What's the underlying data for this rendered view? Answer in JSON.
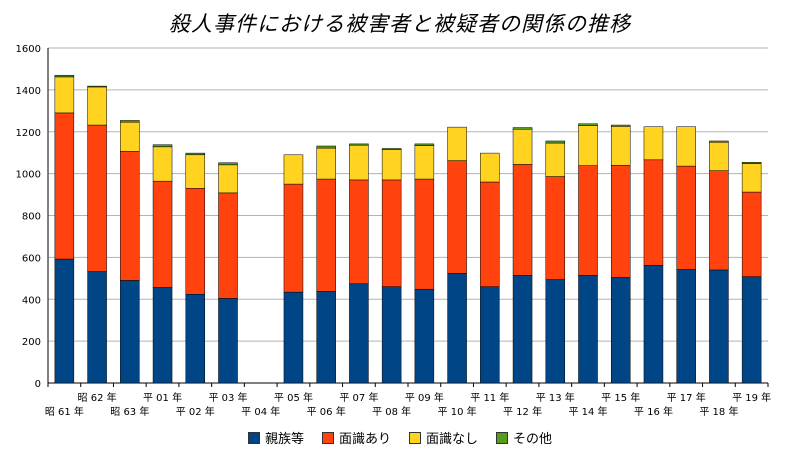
{
  "chart_data": {
    "type": "bar",
    "stacked": true,
    "title": "殺人事件における被害者と被疑者の関係の推移",
    "xlabel": "",
    "ylabel": "",
    "ylim": [
      0,
      1600
    ],
    "yticks": [
      0,
      200,
      400,
      600,
      800,
      1000,
      1200,
      1400,
      1600
    ],
    "grid": true,
    "legend_position": "bottom",
    "categories": [
      "昭 61 年",
      "昭 62 年",
      "昭 63 年",
      "平 01 年",
      "平 02 年",
      "平 03 年",
      "平 04 年",
      "平 05 年",
      "平 06 年",
      "平 07 年",
      "平 08 年",
      "平 09 年",
      "平 10 年",
      "平 11 年",
      "平 12 年",
      "平 13 年",
      "平 14 年",
      "平 15 年",
      "平 16 年",
      "平 17 年",
      "平 18 年",
      "平 19 年"
    ],
    "series": [
      {
        "name": "親族等",
        "color": "#004586",
        "values": [
          592,
          532,
          490,
          456,
          424,
          404,
          null,
          434,
          438,
          474,
          460,
          448,
          524,
          460,
          514,
          494,
          514,
          504,
          562,
          542,
          540,
          508
        ]
      },
      {
        "name": "面識あり",
        "color": "#ff420e",
        "values": [
          698,
          700,
          616,
          508,
          506,
          504,
          null,
          516,
          536,
          496,
          510,
          526,
          538,
          500,
          530,
          492,
          524,
          536,
          504,
          494,
          474,
          404
        ]
      },
      {
        "name": "面識なし",
        "color": "#ffd320",
        "values": [
          172,
          182,
          140,
          164,
          160,
          134,
          null,
          140,
          148,
          166,
          144,
          160,
          160,
          138,
          168,
          160,
          192,
          186,
          158,
          188,
          136,
          136
        ]
      },
      {
        "name": "その他",
        "color": "#579d1c",
        "values": [
          8,
          4,
          8,
          10,
          8,
          10,
          null,
          0,
          10,
          6,
          6,
          8,
          0,
          0,
          8,
          10,
          8,
          6,
          0,
          0,
          6,
          6
        ]
      }
    ]
  }
}
